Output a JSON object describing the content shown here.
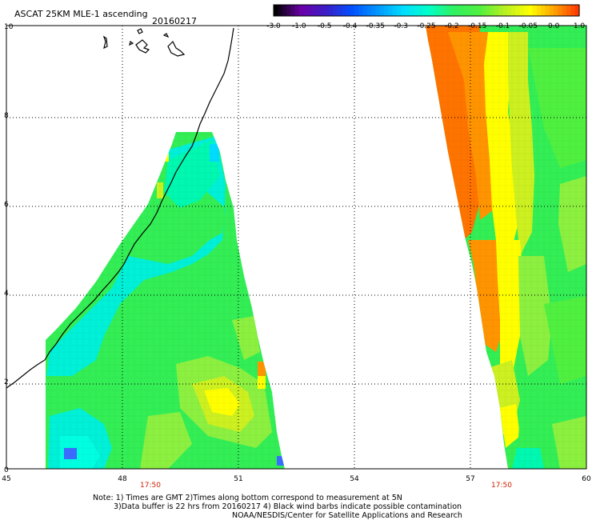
{
  "header": {
    "title": "ASCAT 25KM MLE-1 ascending",
    "date": "20160217"
  },
  "colorbar": {
    "tick_labels": [
      "-3.0",
      "-1.0",
      "-0.5",
      "-0.4",
      "-0.35",
      "-0.3",
      "-0.25",
      "-0.2",
      "-0.15",
      "-0.1",
      "-0.05",
      "0.0",
      "1.0"
    ],
    "colors": [
      "#000000",
      "#6a00a8",
      "#3a1ec8",
      "#0050ff",
      "#0096ff",
      "#00dcff",
      "#00ffc8",
      "#30f060",
      "#50f040",
      "#b8f020",
      "#ffff00",
      "#ff9a00",
      "#ff2a00"
    ]
  },
  "map": {
    "x_ticks": [
      "45",
      "48",
      "51",
      "54",
      "57",
      "60"
    ],
    "y_ticks": [
      "0",
      "2",
      "4",
      "6",
      "8",
      "10"
    ],
    "time_labels": [
      "17:50",
      "17:50"
    ],
    "colors": {
      "cyan": "#00f0d8",
      "aqua": "#00f8b0",
      "green": "#33ee55",
      "lime": "#8cf040",
      "yellowgreen": "#ccf020",
      "yellow": "#ffff00",
      "orange": "#ff9400",
      "darkorange": "#ff7400",
      "blue": "#3a6cff",
      "coast": "#000000"
    }
  },
  "notes": {
    "line1": "Note: 1) Times are GMT 2)Times along bottom correspond to measurement at 5N",
    "line2": "3)Data buffer is 22 hrs from 20160217 4) Black wind barbs indicate possible contamination",
    "line3": "NOAA/NESDIS/Center for Satellite Applications and Research"
  }
}
